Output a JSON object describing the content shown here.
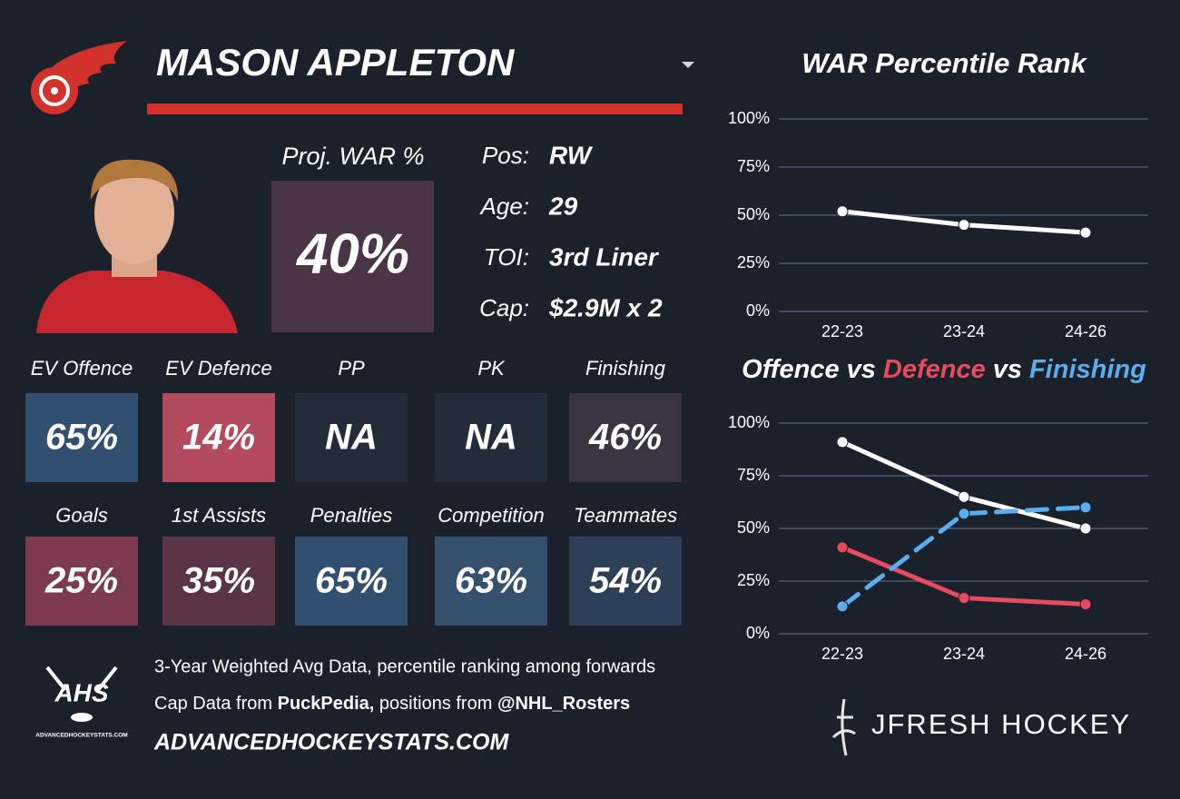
{
  "header": {
    "name": "MASON APPLETON"
  },
  "projection": {
    "label": "Proj. WAR %",
    "value": "40%",
    "color": "#4a3547"
  },
  "info": [
    {
      "label": "Pos:",
      "value": "RW"
    },
    {
      "label": "Age:",
      "value": "29"
    },
    {
      "label": "TOI:",
      "value": "3rd Liner"
    },
    {
      "label": "Cap:",
      "value": "$2.9M x 2"
    }
  ],
  "tiles": [
    [
      {
        "label": "EV Offence",
        "value": "65%",
        "color": "#31506f"
      },
      {
        "label": "EV Defence",
        "value": "14%",
        "color": "#b44a5d"
      },
      {
        "label": "PP",
        "value": "NA",
        "color": "#232d39"
      },
      {
        "label": "PK",
        "value": "NA",
        "color": "#232d39"
      },
      {
        "label": "Finishing",
        "value": "46%",
        "color": "#3a3341"
      }
    ],
    [
      {
        "label": "Goals",
        "value": "25%",
        "color": "#7b3a50"
      },
      {
        "label": "1st Assists",
        "value": "35%",
        "color": "#5b3447"
      },
      {
        "label": "Penalties",
        "value": "65%",
        "color": "#31506f"
      },
      {
        "label": "Competition",
        "value": "63%",
        "color": "#33506d"
      },
      {
        "label": "Teammates",
        "value": "54%",
        "color": "#2c3f56"
      }
    ]
  ],
  "footer": {
    "logo_text": "AHS",
    "logo_caption": "ADVANCEDHOCKEYSTATS.COM",
    "note": "3-Year Weighted Avg Data, percentile ranking among forwards",
    "sources": [
      "Cap Data from ",
      "PuckPedia,",
      " positions from ",
      "@NHL_Rosters"
    ],
    "website": "ADVANCEDHOCKEYSTATS.COM",
    "brand": "JFRESH HOCKEY"
  },
  "chart_data": [
    {
      "type": "line",
      "title": "WAR Percentile Rank",
      "categories": [
        "22-23",
        "23-24",
        "24-26"
      ],
      "series": [
        {
          "name": "WAR",
          "color": "#ffffff",
          "values": [
            52,
            45,
            41
          ]
        }
      ],
      "ylim": [
        0,
        100
      ],
      "yticks": [
        {
          "value": 0,
          "label": "0%"
        },
        {
          "value": 25,
          "label": "25%"
        },
        {
          "value": 50,
          "label": "50%"
        },
        {
          "value": 75,
          "label": "75%"
        },
        {
          "value": 100,
          "label": "100%"
        }
      ],
      "grid": true
    },
    {
      "type": "line",
      "title_separator": "vs",
      "categories": [
        "22-23",
        "23-24",
        "24-26"
      ],
      "series": [
        {
          "name": "Offence",
          "color": "#ffffff",
          "values": [
            91,
            65,
            50
          ]
        },
        {
          "name": "Defence",
          "color": "#e84a5f",
          "values": [
            41,
            17,
            14
          ]
        },
        {
          "name": "Finishing",
          "color": "#5aaef0",
          "values": [
            13,
            57,
            60
          ],
          "dashed": true
        }
      ],
      "ylim": [
        0,
        100
      ],
      "yticks": [
        {
          "value": 0,
          "label": "0%"
        },
        {
          "value": 25,
          "label": "25%"
        },
        {
          "value": 50,
          "label": "50%"
        },
        {
          "value": 75,
          "label": "75%"
        },
        {
          "value": 100,
          "label": "100%"
        }
      ],
      "grid": true
    }
  ]
}
